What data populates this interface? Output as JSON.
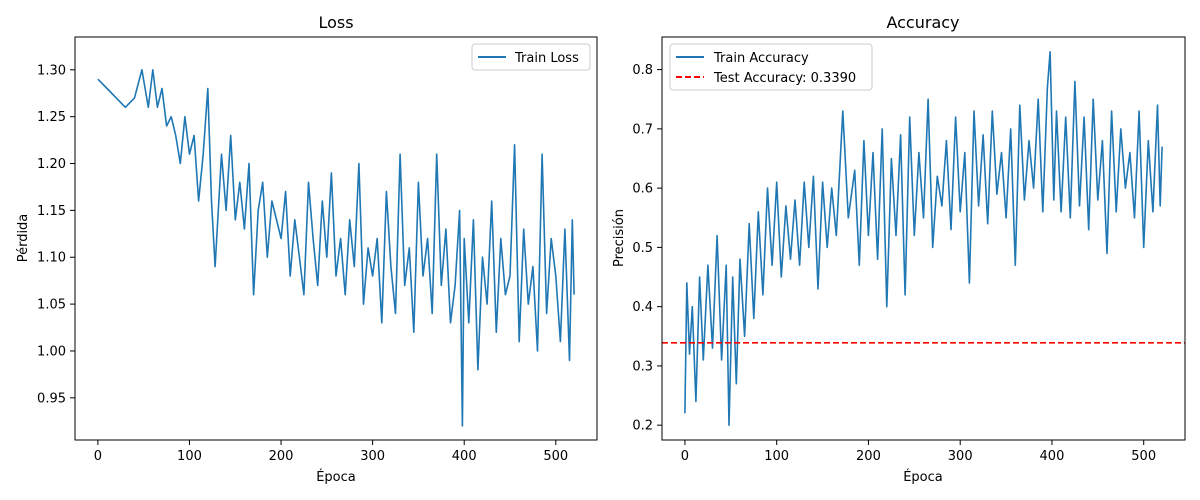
{
  "chart_data": [
    {
      "type": "line",
      "title": "Loss",
      "xlabel": "Época",
      "ylabel": "Pérdida",
      "xlim": [
        -25,
        545
      ],
      "ylim": [
        0.905,
        1.335
      ],
      "x_ticks": [
        0,
        100,
        200,
        300,
        400,
        500
      ],
      "x_tick_labels": [
        "0",
        "100",
        "200",
        "300",
        "400",
        "500"
      ],
      "y_ticks": [
        0.95,
        1.0,
        1.05,
        1.1,
        1.15,
        1.2,
        1.25,
        1.3
      ],
      "y_tick_labels": [
        "0.95",
        "1.00",
        "1.05",
        "1.10",
        "1.15",
        "1.20",
        "1.25",
        "1.30"
      ],
      "grid": false,
      "legend": {
        "placement": "top-right"
      },
      "series": [
        {
          "name": "Train Loss",
          "color": "#1f77b4",
          "x": [
            0,
            10,
            20,
            30,
            40,
            48,
            55,
            60,
            65,
            70,
            75,
            80,
            85,
            90,
            95,
            100,
            105,
            110,
            115,
            120,
            124,
            128,
            135,
            140,
            145,
            150,
            155,
            160,
            165,
            170,
            175,
            180,
            185,
            190,
            200,
            205,
            210,
            215,
            220,
            225,
            230,
            235,
            240,
            245,
            250,
            255,
            260,
            265,
            270,
            275,
            280,
            285,
            290,
            295,
            300,
            305,
            310,
            315,
            320,
            325,
            330,
            335,
            340,
            345,
            350,
            355,
            360,
            365,
            370,
            375,
            380,
            385,
            390,
            395,
            398,
            400,
            405,
            410,
            415,
            420,
            425,
            430,
            435,
            440,
            445,
            450,
            455,
            460,
            465,
            470,
            475,
            480,
            485,
            490,
            495,
            500,
            505,
            510,
            515,
            518,
            520
          ],
          "y": [
            1.29,
            1.28,
            1.27,
            1.26,
            1.27,
            1.3,
            1.26,
            1.3,
            1.26,
            1.28,
            1.24,
            1.25,
            1.23,
            1.2,
            1.25,
            1.21,
            1.23,
            1.16,
            1.21,
            1.28,
            1.16,
            1.09,
            1.21,
            1.15,
            1.23,
            1.14,
            1.18,
            1.13,
            1.2,
            1.06,
            1.15,
            1.18,
            1.1,
            1.16,
            1.12,
            1.17,
            1.08,
            1.14,
            1.1,
            1.06,
            1.18,
            1.12,
            1.07,
            1.16,
            1.1,
            1.19,
            1.08,
            1.12,
            1.06,
            1.14,
            1.09,
            1.2,
            1.05,
            1.11,
            1.08,
            1.12,
            1.03,
            1.17,
            1.09,
            1.04,
            1.21,
            1.07,
            1.11,
            1.02,
            1.18,
            1.08,
            1.12,
            1.04,
            1.21,
            1.07,
            1.13,
            1.03,
            1.07,
            1.15,
            0.92,
            1.12,
            1.03,
            1.14,
            0.98,
            1.1,
            1.05,
            1.16,
            1.02,
            1.12,
            1.06,
            1.08,
            1.22,
            1.01,
            1.13,
            1.05,
            1.09,
            1.0,
            1.21,
            1.04,
            1.12,
            1.08,
            1.01,
            1.13,
            0.99,
            1.14,
            1.06
          ]
        }
      ]
    },
    {
      "type": "line",
      "title": "Accuracy",
      "xlabel": "Época",
      "ylabel": "Precisión",
      "xlim": [
        -25,
        545
      ],
      "ylim": [
        0.175,
        0.855
      ],
      "x_ticks": [
        0,
        100,
        200,
        300,
        400,
        500
      ],
      "x_tick_labels": [
        "0",
        "100",
        "200",
        "300",
        "400",
        "500"
      ],
      "y_ticks": [
        0.2,
        0.3,
        0.4,
        0.5,
        0.6,
        0.7,
        0.8
      ],
      "y_tick_labels": [
        "0.2",
        "0.3",
        "0.4",
        "0.5",
        "0.6",
        "0.7",
        "0.8"
      ],
      "grid": false,
      "legend": {
        "placement": "top-left"
      },
      "series": [
        {
          "name": "Train Accuracy",
          "color": "#1f77b4",
          "x": [
            0,
            2,
            5,
            8,
            12,
            16,
            20,
            25,
            30,
            35,
            40,
            45,
            48,
            52,
            56,
            60,
            65,
            70,
            75,
            80,
            85,
            90,
            95,
            100,
            105,
            110,
            115,
            120,
            125,
            130,
            135,
            140,
            145,
            150,
            155,
            160,
            165,
            172,
            178,
            185,
            190,
            195,
            200,
            205,
            210,
            215,
            220,
            225,
            230,
            235,
            240,
            245,
            250,
            255,
            260,
            265,
            270,
            275,
            280,
            285,
            290,
            295,
            300,
            305,
            310,
            315,
            320,
            325,
            330,
            335,
            340,
            345,
            350,
            355,
            360,
            365,
            370,
            375,
            380,
            385,
            390,
            395,
            398,
            402,
            405,
            410,
            415,
            420,
            425,
            430,
            435,
            440,
            445,
            450,
            455,
            460,
            465,
            470,
            475,
            480,
            485,
            490,
            495,
            500,
            505,
            510,
            515,
            518,
            520
          ],
          "y": [
            0.22,
            0.44,
            0.32,
            0.4,
            0.24,
            0.45,
            0.31,
            0.47,
            0.33,
            0.52,
            0.31,
            0.47,
            0.2,
            0.45,
            0.27,
            0.48,
            0.35,
            0.54,
            0.38,
            0.56,
            0.42,
            0.6,
            0.47,
            0.61,
            0.45,
            0.57,
            0.48,
            0.58,
            0.47,
            0.61,
            0.5,
            0.62,
            0.43,
            0.61,
            0.5,
            0.6,
            0.52,
            0.73,
            0.55,
            0.63,
            0.47,
            0.68,
            0.52,
            0.66,
            0.48,
            0.7,
            0.4,
            0.65,
            0.52,
            0.69,
            0.42,
            0.72,
            0.52,
            0.66,
            0.55,
            0.75,
            0.5,
            0.62,
            0.57,
            0.68,
            0.53,
            0.72,
            0.56,
            0.66,
            0.44,
            0.73,
            0.57,
            0.69,
            0.54,
            0.73,
            0.59,
            0.66,
            0.55,
            0.7,
            0.47,
            0.74,
            0.58,
            0.68,
            0.6,
            0.75,
            0.56,
            0.77,
            0.83,
            0.58,
            0.73,
            0.56,
            0.72,
            0.55,
            0.78,
            0.57,
            0.72,
            0.53,
            0.75,
            0.58,
            0.68,
            0.49,
            0.73,
            0.56,
            0.7,
            0.6,
            0.66,
            0.55,
            0.73,
            0.5,
            0.68,
            0.56,
            0.74,
            0.57,
            0.67
          ]
        },
        {
          "name": "Test Accuracy: 0.3390",
          "color": "#ff0000",
          "dashed": true,
          "horizontal_line": 0.339
        }
      ]
    }
  ]
}
